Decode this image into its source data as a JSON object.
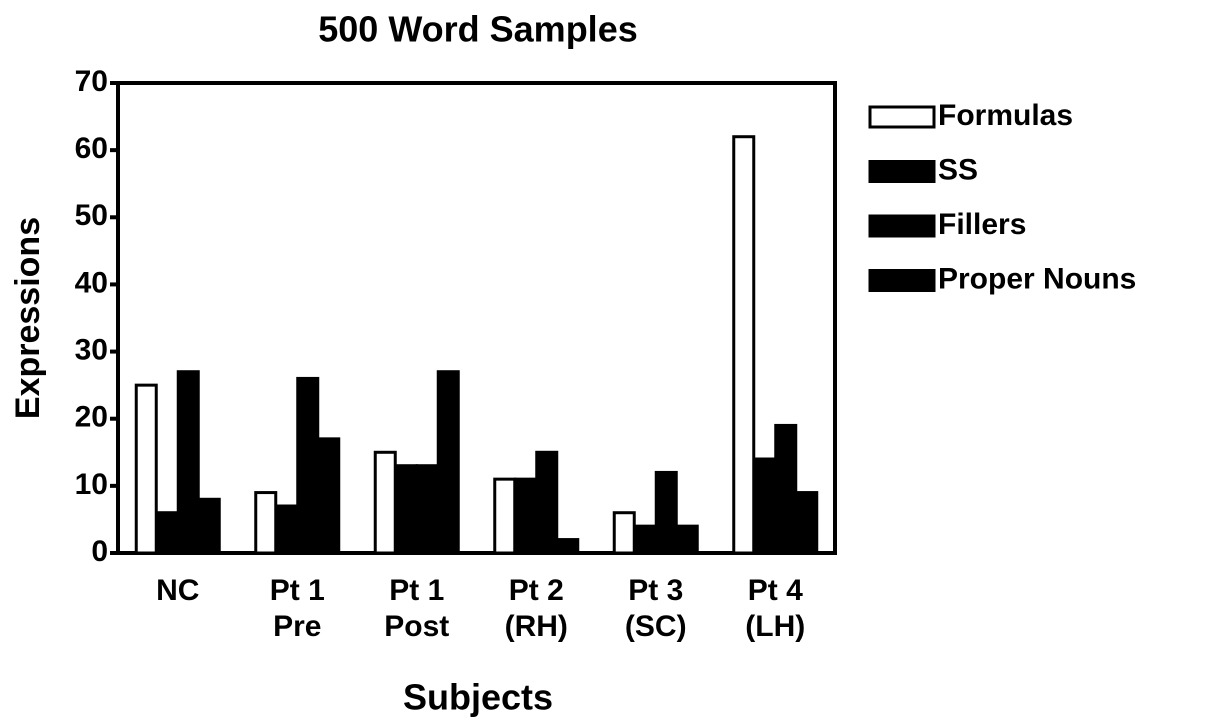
{
  "chart_data": {
    "type": "bar",
    "title": "500 Word Samples",
    "x_label": "Subjects",
    "y_label": "Expressions",
    "categories": [
      "NC",
      "Pt 1\nPre",
      "Pt 1\nPost",
      "Pt 2\n(RH)",
      "Pt 3\n(SC)",
      "Pt 4\n(LH)"
    ],
    "series": [
      {
        "name": "Formulas",
        "color": "#ffffff",
        "values": [
          25,
          9,
          15,
          11,
          6,
          62
        ]
      },
      {
        "name": "SS",
        "color": "#000000",
        "values": [
          6,
          7,
          13,
          11,
          4,
          14
        ]
      },
      {
        "name": "Fillers",
        "color": "#000000",
        "values": [
          27,
          26,
          13,
          15,
          12,
          19
        ]
      },
      {
        "name": "Proper Nouns",
        "color": "#000000",
        "values": [
          8,
          17,
          27,
          2,
          4,
          9
        ]
      }
    ],
    "ylim": [
      0,
      70
    ],
    "yticks": [
      0,
      10,
      20,
      30,
      40,
      50,
      60,
      70
    ],
    "legend": "right"
  }
}
